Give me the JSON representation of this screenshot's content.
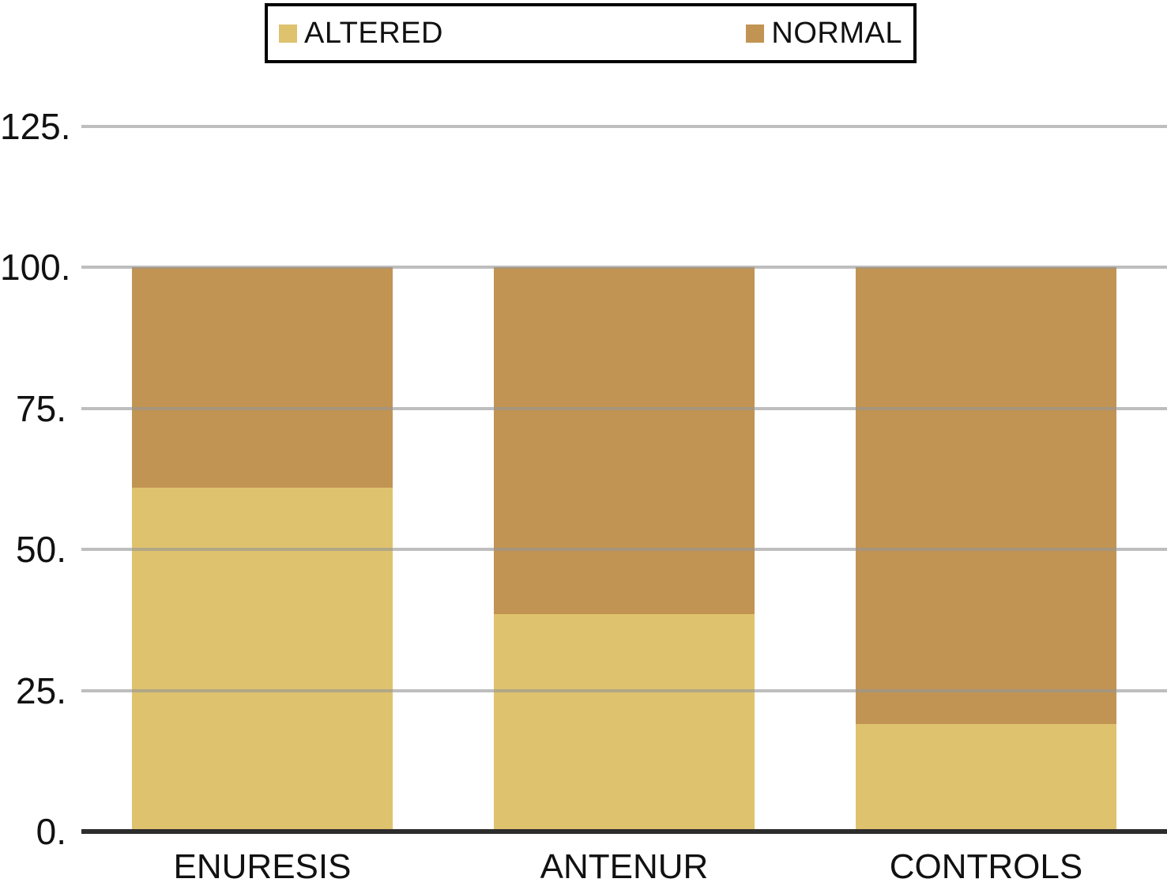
{
  "chart_data": {
    "type": "bar",
    "stacked": true,
    "title": "",
    "xlabel": "",
    "ylabel": "",
    "categories": [
      "ENURESIS",
      "ANTENUR",
      "CONTROLS"
    ],
    "series": [
      {
        "name": "ALTERED",
        "color": "#DEC26E",
        "values": [
          61,
          38.5,
          19
        ]
      },
      {
        "name": "NORMAL",
        "color": "#C19453",
        "values": [
          39,
          61.5,
          81
        ]
      }
    ],
    "ylim": [
      0,
      125
    ],
    "yticks": [
      0,
      25,
      50,
      75,
      100,
      125
    ],
    "ytick_labels": [
      "0.",
      "25.",
      "50.",
      "75.",
      "100.",
      "125."
    ],
    "grid": true,
    "legend_position": "top",
    "gridline_color": "#BEBEBE",
    "axis_color": "#2d2d2d",
    "background_color": "#FFFFFF"
  }
}
